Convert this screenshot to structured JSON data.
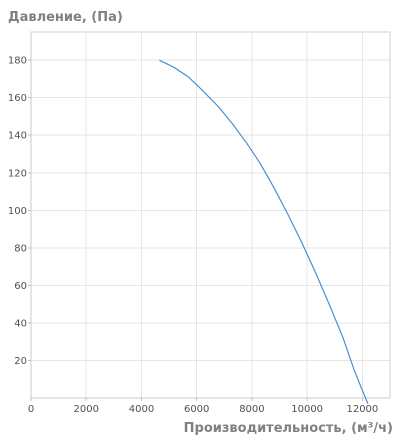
{
  "chart_data": {
    "type": "line",
    "title": "",
    "ylabel": "Давление, (Па)",
    "xlabel": "Производительность, (м³/ч)",
    "xlim": [
      0,
      13000
    ],
    "ylim": [
      0,
      195
    ],
    "x_ticks": [
      0,
      2000,
      4000,
      6000,
      8000,
      10000,
      12000
    ],
    "y_ticks": [
      20,
      40,
      60,
      80,
      100,
      120,
      140,
      160,
      180
    ],
    "x_tick_labels": [
      "0",
      "2000",
      "4000",
      "6000",
      "8000",
      "10000",
      "12000"
    ],
    "y_tick_labels": [
      "20",
      "40",
      "60",
      "80",
      "100",
      "120",
      "140",
      "160",
      "180"
    ],
    "grid": true,
    "series": [
      {
        "color": "#4a8fd1",
        "x": [
          4650,
          5200,
          5700,
          6200,
          6800,
          7300,
          7800,
          8300,
          8800,
          9300,
          9800,
          10300,
          10800,
          11300,
          11700,
          12000,
          12200
        ],
        "y": [
          180,
          176,
          171,
          164,
          155,
          146,
          136,
          125,
          112,
          98,
          83,
          67,
          50,
          32,
          15,
          4,
          -3
        ]
      }
    ]
  }
}
